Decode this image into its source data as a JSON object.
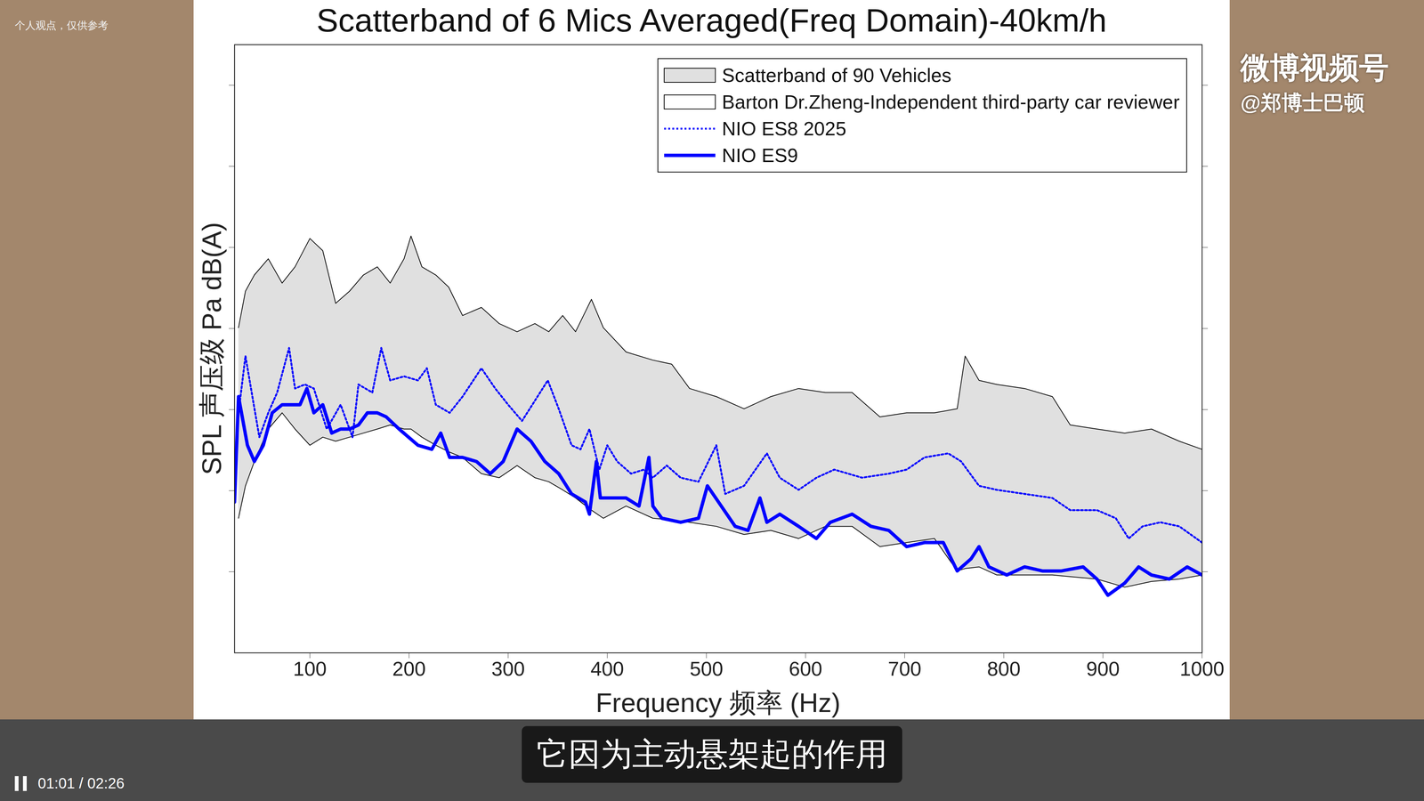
{
  "chart_data": {
    "type": "line",
    "title": "Scatterband of 6 Mics Averaged(Freq Domain)-40km/h",
    "x_label": "Frequency 频率 (Hz)",
    "y_label": "SPL 声压级 Pa dB(A)",
    "xlim": [
      24,
      1000
    ],
    "ylim": [
      0,
      75
    ],
    "xticks": [
      100,
      200,
      300,
      400,
      500,
      600,
      700,
      800,
      900,
      1000
    ],
    "yticks": [
      10,
      20,
      30,
      40,
      50,
      60,
      70
    ],
    "grid": false,
    "tick_labels": "x",
    "legend": "top-right",
    "series": [
      {
        "name": "Scatterband of 90 Vehicles",
        "type": "area",
        "color": "#e0e0e0",
        "x": [
          28,
          35,
          44,
          58,
          72,
          85,
          100,
          113,
          126,
          140,
          154,
          168,
          181,
          195,
          202,
          213,
          227,
          240,
          254,
          273,
          291,
          309,
          327,
          341,
          355,
          368,
          384,
          396,
          419,
          446,
          465,
          483,
          510,
          538,
          565,
          593,
          620,
          647,
          675,
          702,
          730,
          753,
          761,
          775,
          793,
          821,
          849,
          867,
          894,
          922,
          949,
          977,
          1000
        ],
        "values": [
          40.1,
          44.6,
          46.6,
          48.6,
          45.6,
          47.6,
          51.1,
          49.6,
          43.1,
          44.6,
          46.6,
          47.6,
          45.6,
          48.6,
          51.4,
          47.6,
          46.6,
          45.1,
          41.6,
          42.6,
          40.6,
          39.6,
          40.6,
          39.6,
          41.6,
          39.6,
          43.6,
          40.1,
          37.1,
          36.1,
          35.6,
          32.6,
          31.6,
          30.1,
          31.6,
          32.6,
          32.1,
          32.1,
          29.1,
          29.6,
          29.6,
          30.1,
          36.6,
          33.6,
          33.1,
          32.6,
          31.6,
          28.1,
          27.6,
          27.1,
          27.6,
          26.1,
          25.1
        ],
        "lower": [
          16.6,
          20.6,
          23.6,
          27.6,
          29.6,
          27.6,
          25.6,
          26.6,
          26.1,
          26.6,
          27.1,
          27.6,
          28.1,
          27.6,
          27.6,
          26.6,
          25.6,
          24.8,
          24.1,
          22.1,
          21.6,
          23.1,
          21.6,
          21.1,
          20.1,
          19.1,
          17.6,
          16.6,
          18.1,
          16.6,
          16.4,
          16.1,
          15.6,
          14.6,
          15.1,
          14.1,
          15.6,
          15.6,
          13.1,
          13.6,
          14.1,
          10.1,
          10.4,
          10.6,
          9.6,
          9.6,
          9.6,
          9.4,
          9.1,
          8.1,
          8.8,
          9.1,
          9.6
        ]
      },
      {
        "name": "Barton Dr.Zheng-Independent third-party car reviewer",
        "type": "area",
        "color": "#ffffff",
        "x": [],
        "values": []
      },
      {
        "name": "NIO ES8 2025",
        "type": "line",
        "color": "#0000ff",
        "line_style": "dotted",
        "x": [
          24,
          28,
          35,
          42,
          49,
          58,
          67,
          79,
          85,
          95,
          104,
          117,
          131,
          143,
          149,
          163,
          172,
          181,
          195,
          209,
          218,
          227,
          241,
          254,
          273,
          287,
          300,
          314,
          327,
          340,
          351,
          364,
          373,
          382,
          392,
          400,
          410,
          424,
          437,
          446,
          460,
          474,
          492,
          510,
          519,
          538,
          561,
          574,
          593,
          611,
          629,
          657,
          684,
          702,
          720,
          744,
          757,
          775,
          793,
          821,
          849,
          867,
          894,
          913,
          926,
          940,
          958,
          977,
          1000
        ],
        "values": [
          19.6,
          29.6,
          36.6,
          31.6,
          26.6,
          29.6,
          32.1,
          37.6,
          32.6,
          33.1,
          32.6,
          27.6,
          30.6,
          26.6,
          33.1,
          32.1,
          37.6,
          33.6,
          34.1,
          33.6,
          35.1,
          30.6,
          29.6,
          31.6,
          35.1,
          32.6,
          30.6,
          28.6,
          31.1,
          33.6,
          30.1,
          25.6,
          25.1,
          27.6,
          22.6,
          25.6,
          23.6,
          22.1,
          22.6,
          21.6,
          23.1,
          21.6,
          21.1,
          25.6,
          19.6,
          20.6,
          24.6,
          21.6,
          20.1,
          21.6,
          22.6,
          21.6,
          22.1,
          22.6,
          24.1,
          24.6,
          23.6,
          20.6,
          20.1,
          19.6,
          19.1,
          17.6,
          17.6,
          16.6,
          14.1,
          15.6,
          16.1,
          15.6,
          13.6
        ]
      },
      {
        "name": "NIO ES9",
        "type": "line",
        "color": "#0000ff",
        "line_style": "solid",
        "x": [
          24,
          28,
          31,
          37,
          44,
          53,
          62,
          72,
          81,
          90,
          97,
          104,
          113,
          122,
          131,
          140,
          149,
          158,
          168,
          177,
          190,
          209,
          223,
          232,
          241,
          254,
          268,
          282,
          295,
          309,
          323,
          337,
          351,
          364,
          378,
          382,
          389,
          393,
          405,
          419,
          432,
          442,
          446,
          455,
          474,
          492,
          501,
          515,
          529,
          542,
          554,
          561,
          574,
          593,
          611,
          625,
          647,
          666,
          684,
          702,
          720,
          739,
          753,
          767,
          775,
          785,
          803,
          821,
          839,
          858,
          880,
          894,
          905,
          922,
          936,
          949,
          967,
          985,
          1000
        ],
        "values": [
          18.6,
          31.6,
          29.6,
          25.6,
          23.6,
          25.6,
          29.6,
          30.6,
          30.6,
          30.6,
          32.6,
          29.6,
          30.6,
          27.1,
          27.6,
          27.6,
          28.1,
          29.6,
          29.6,
          29.1,
          27.6,
          25.6,
          25.1,
          27.1,
          24.1,
          24.1,
          23.6,
          22.1,
          23.6,
          27.6,
          26.1,
          23.6,
          22.1,
          19.6,
          18.6,
          17.1,
          23.6,
          19.1,
          19.1,
          19.1,
          18.1,
          24.1,
          18.1,
          16.6,
          16.1,
          16.6,
          20.6,
          18.1,
          15.6,
          15.1,
          19.1,
          16.1,
          17.1,
          15.6,
          14.1,
          16.1,
          17.1,
          15.6,
          15.1,
          13.1,
          13.6,
          13.6,
          10.1,
          11.6,
          13.1,
          10.6,
          9.6,
          10.6,
          10.1,
          10.1,
          10.6,
          9.1,
          7.1,
          8.6,
          10.6,
          9.6,
          9.1,
          10.6,
          9.6
        ]
      }
    ]
  },
  "overlay": {
    "notice": "个人观点，仅供参考",
    "watermark": [
      "微博视频号",
      "@郑博士巴顿"
    ],
    "subtitle": "它因为主动悬架起的作用",
    "time": "01:01 / 02:26"
  }
}
